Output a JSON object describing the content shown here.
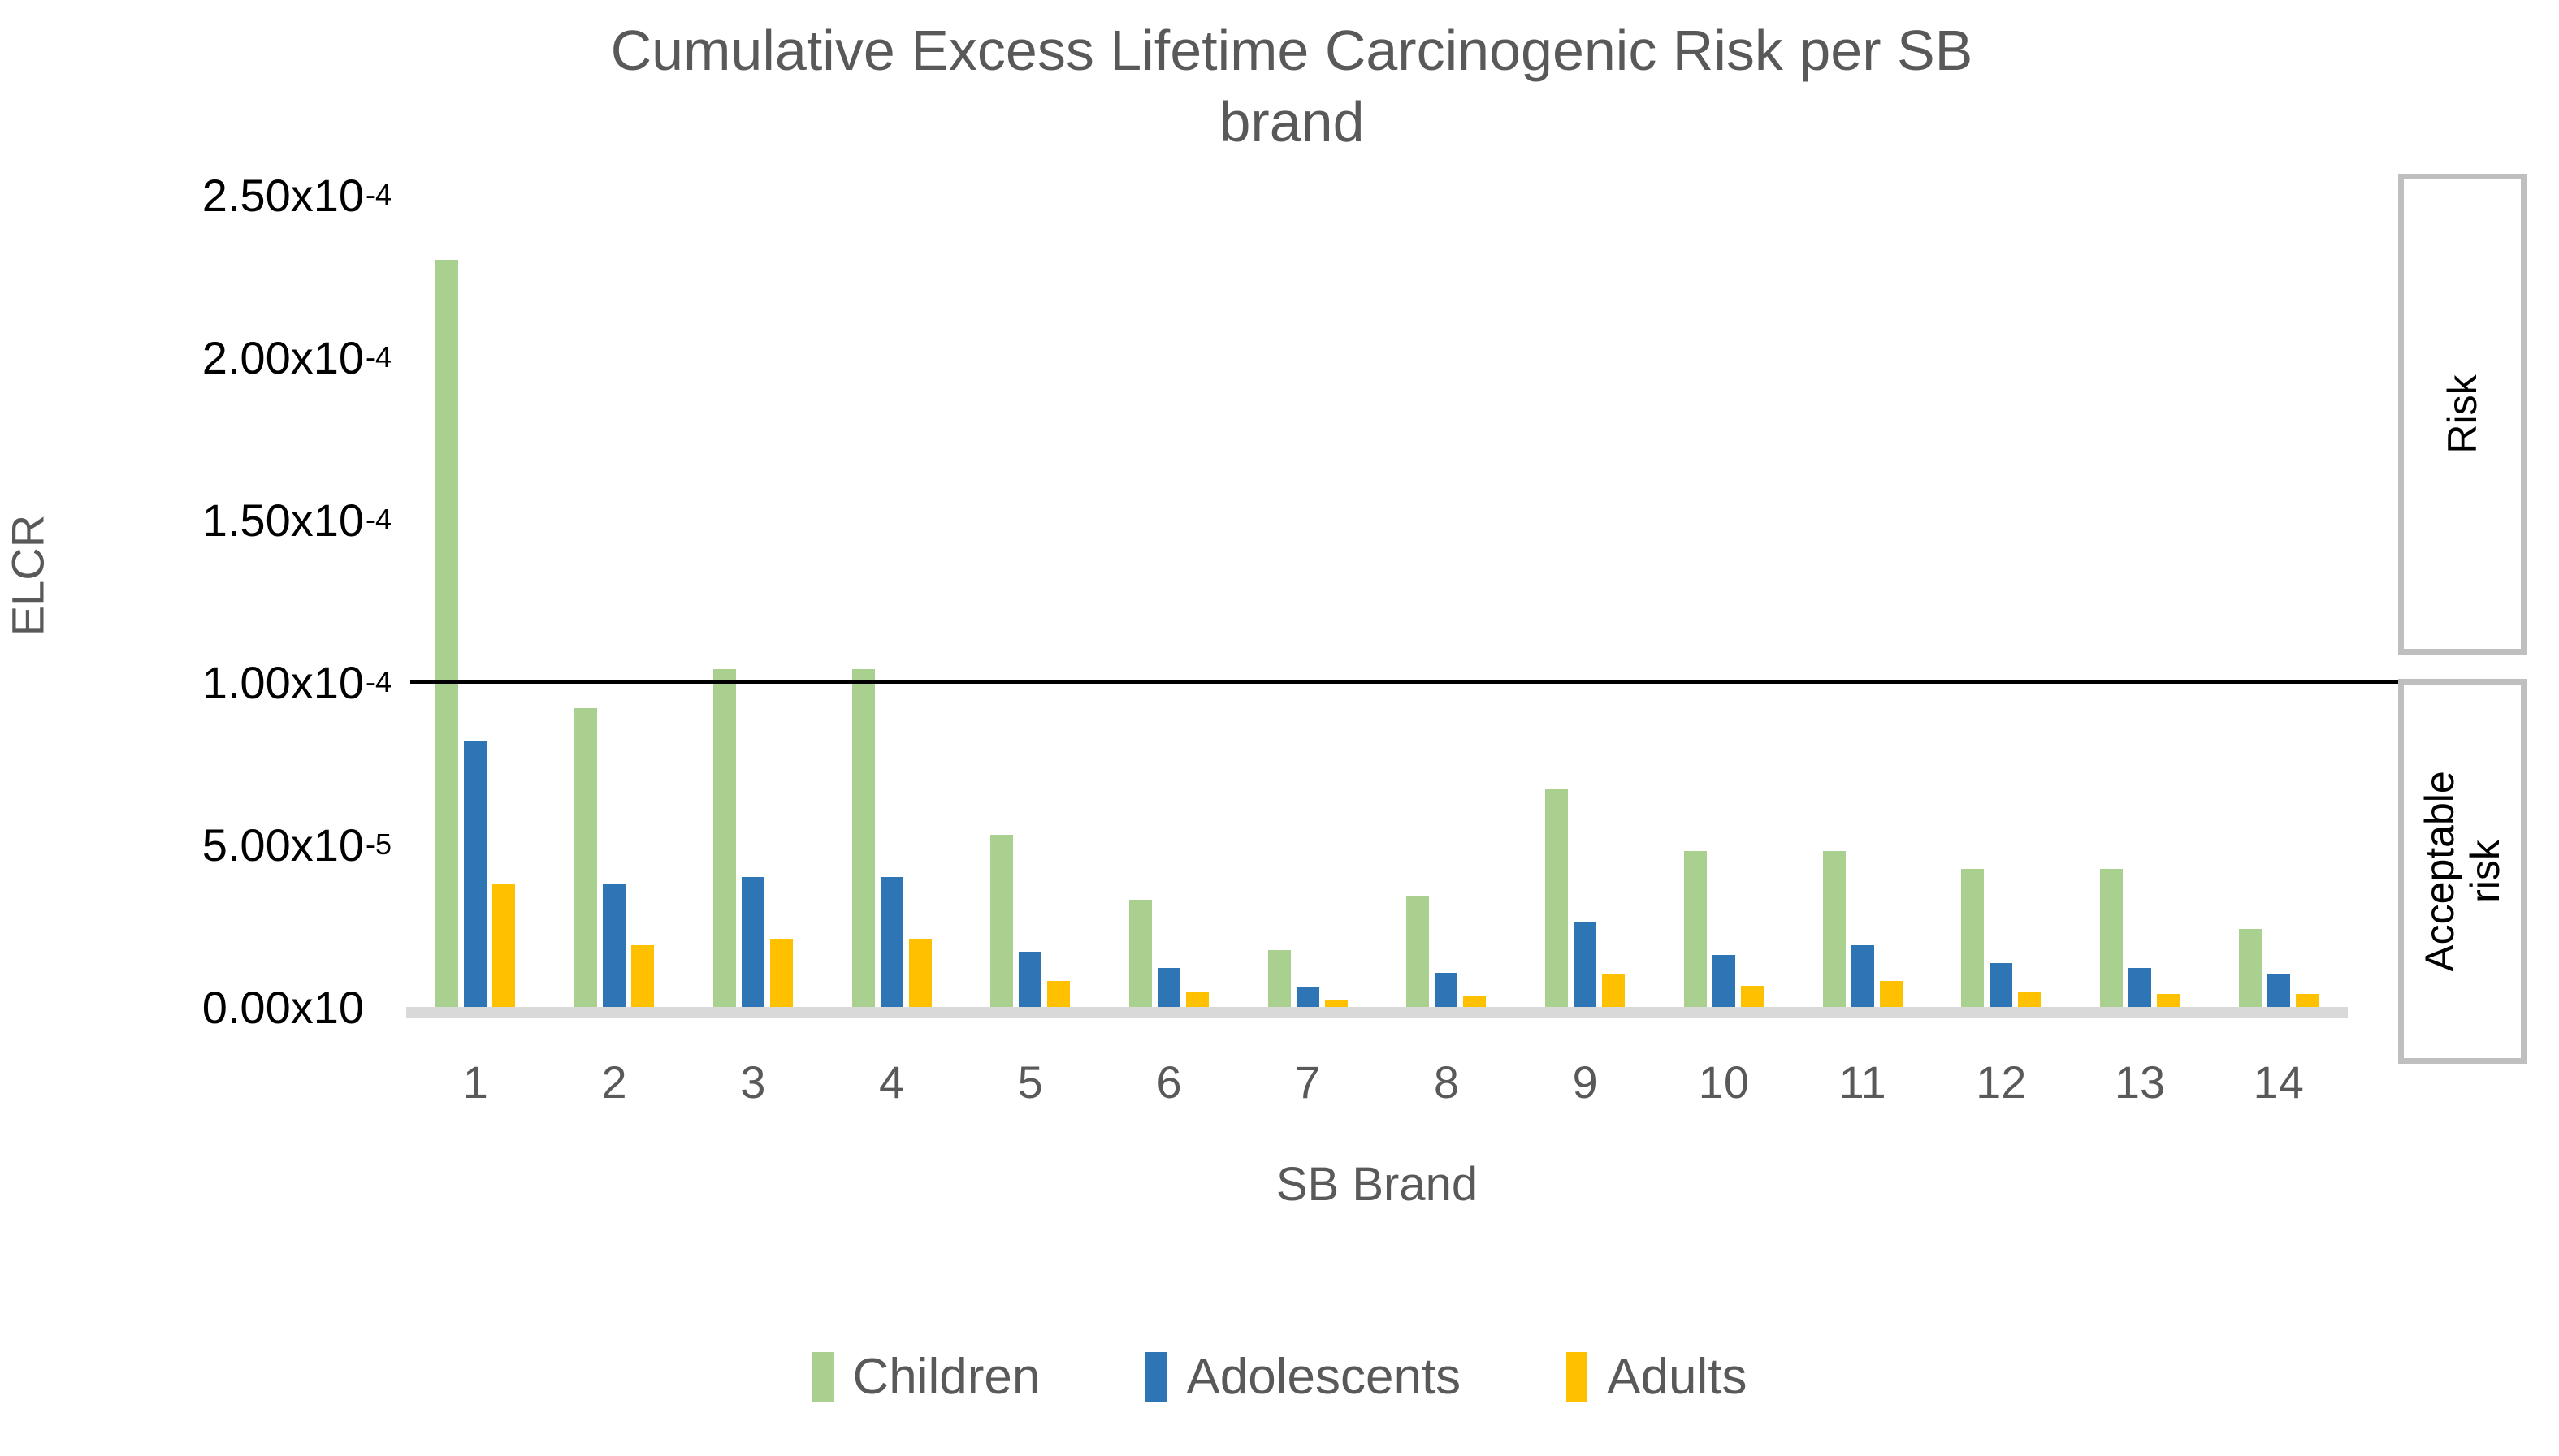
{
  "title_lines": [
    "Cumulative Excess Lifetime Carcinogenic Risk per SB",
    "brand"
  ],
  "axes": {
    "y_label": "ELCR",
    "x_label": "SB Brand"
  },
  "annotations": {
    "risk_label": "Risk",
    "acceptable_label": "Acceptable risk"
  },
  "legend": [
    {
      "label": "Children",
      "color": "#A9D08E"
    },
    {
      "label": "Adolescents",
      "color": "#2E75B6"
    },
    {
      "label": "Adults",
      "color": "#FFC000"
    }
  ],
  "colors": {
    "children": "#A9D08E",
    "adolescents": "#2E75B6",
    "adults": "#FFC000",
    "text_gray": "#595959",
    "axis_line": "#D9D9D9",
    "box_border": "#BFBFBF",
    "threshold": "#000000"
  },
  "chart_data": {
    "type": "bar",
    "title": "Cumulative Excess Lifetime Carcinogenic Risk per SB brand",
    "xlabel": "SB Brand",
    "ylabel": "ELCR",
    "categories": [
      "1",
      "2",
      "3",
      "4",
      "5",
      "6",
      "7",
      "8",
      "9",
      "10",
      "11",
      "12",
      "13",
      "14"
    ],
    "value_unit": "x10^-5 (ELCR)",
    "series": [
      {
        "name": "Children",
        "color": "#A9D08E",
        "values": [
          23.0,
          9.2,
          10.4,
          10.4,
          5.3,
          3.3,
          1.75,
          3.4,
          6.7,
          4.8,
          4.8,
          4.25,
          4.25,
          2.4
        ]
      },
      {
        "name": "Adolescents",
        "color": "#2E75B6",
        "values": [
          8.2,
          3.8,
          4.0,
          4.0,
          1.7,
          1.2,
          0.6,
          1.05,
          2.6,
          1.6,
          1.9,
          1.35,
          1.2,
          1.0
        ]
      },
      {
        "name": "Adults",
        "color": "#FFC000",
        "values": [
          3.8,
          1.9,
          2.1,
          2.1,
          0.8,
          0.45,
          0.2,
          0.35,
          1.0,
          0.65,
          0.8,
          0.45,
          0.4,
          0.4
        ]
      }
    ],
    "ylim": [
      0,
      25
    ],
    "grid": false,
    "legend_position": "bottom",
    "threshold": {
      "value": 10.0,
      "label_above": "Risk",
      "label_below": "Acceptable risk"
    },
    "y_ticks": [
      {
        "value": 25,
        "base": "2.50x10",
        "exp": "-4"
      },
      {
        "value": 20,
        "base": "2.00x10",
        "exp": "-4"
      },
      {
        "value": 15,
        "base": "1.50x10",
        "exp": "-4"
      },
      {
        "value": 10,
        "base": "1.00x10",
        "exp": "-4"
      },
      {
        "value": 5,
        "base": "5.00x10",
        "exp": "-5"
      },
      {
        "value": 0,
        "base": "0.00x10",
        "exp": ""
      }
    ]
  }
}
